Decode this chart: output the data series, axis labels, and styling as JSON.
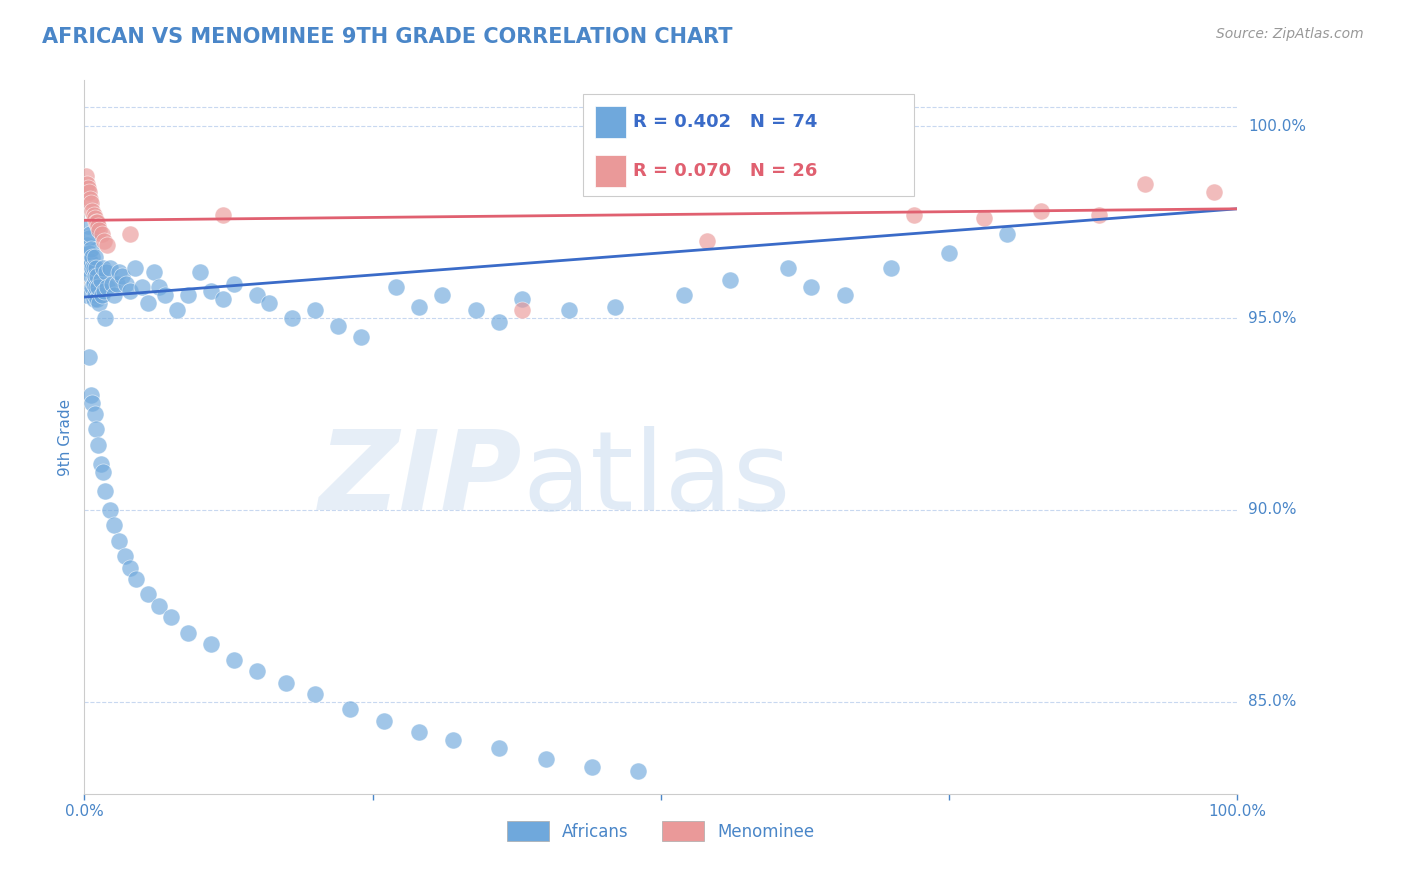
{
  "title": "AFRICAN VS MENOMINEE 9TH GRADE CORRELATION CHART",
  "source_text": "Source: ZipAtlas.com",
  "ylabel": "9th Grade",
  "african_R": 0.402,
  "african_N": 74,
  "menominee_R": 0.07,
  "menominee_N": 26,
  "african_color": "#6fa8dc",
  "menominee_color": "#ea9999",
  "african_line_color": "#3a6bc8",
  "menominee_line_color": "#e06070",
  "grid_color": "#c8d8f0",
  "title_color": "#4a86c8",
  "axis_color": "#4a86c8",
  "x_range": [
    0.0,
    1.0
  ],
  "y_range": [
    0.826,
    1.012
  ],
  "right_ticks": {
    "1.00": "100.0%",
    "0.95": "95.0%",
    "0.90": "90.0%",
    "0.85": "85.0%"
  },
  "african_scatter_x": [
    0.001,
    0.001,
    0.002,
    0.003,
    0.004,
    0.004,
    0.005,
    0.005,
    0.006,
    0.006,
    0.007,
    0.007,
    0.007,
    0.008,
    0.008,
    0.008,
    0.009,
    0.009,
    0.009,
    0.01,
    0.01,
    0.011,
    0.011,
    0.012,
    0.013,
    0.014,
    0.015,
    0.016,
    0.017,
    0.018,
    0.019,
    0.02,
    0.022,
    0.024,
    0.026,
    0.028,
    0.03,
    0.033,
    0.036,
    0.04,
    0.044,
    0.05,
    0.055,
    0.06,
    0.065,
    0.07,
    0.08,
    0.09,
    0.1,
    0.11,
    0.12,
    0.13,
    0.15,
    0.16,
    0.18,
    0.2,
    0.22,
    0.24,
    0.27,
    0.29,
    0.31,
    0.34,
    0.36,
    0.38,
    0.42,
    0.46,
    0.52,
    0.56,
    0.61,
    0.63,
    0.66,
    0.7,
    0.75,
    0.8
  ],
  "african_scatter_y": [
    0.963,
    0.956,
    0.969,
    0.974,
    0.971,
    0.967,
    0.972,
    0.965,
    0.968,
    0.961,
    0.966,
    0.963,
    0.958,
    0.963,
    0.959,
    0.955,
    0.966,
    0.961,
    0.956,
    0.963,
    0.958,
    0.961,
    0.955,
    0.958,
    0.954,
    0.96,
    0.956,
    0.963,
    0.957,
    0.95,
    0.962,
    0.958,
    0.963,
    0.959,
    0.956,
    0.959,
    0.962,
    0.961,
    0.959,
    0.957,
    0.963,
    0.958,
    0.954,
    0.962,
    0.958,
    0.956,
    0.952,
    0.956,
    0.962,
    0.957,
    0.955,
    0.959,
    0.956,
    0.954,
    0.95,
    0.952,
    0.948,
    0.945,
    0.958,
    0.953,
    0.956,
    0.952,
    0.949,
    0.955,
    0.952,
    0.953,
    0.956,
    0.96,
    0.963,
    0.958,
    0.956,
    0.963,
    0.967,
    0.972
  ],
  "african_scatter_y_low": [
    0.94,
    0.93,
    0.928,
    0.925,
    0.921,
    0.917,
    0.912,
    0.91,
    0.905,
    0.9,
    0.896,
    0.892,
    0.888,
    0.885,
    0.882,
    0.878,
    0.875,
    0.872,
    0.868,
    0.865,
    0.861,
    0.858,
    0.855,
    0.852,
    0.848,
    0.845,
    0.842,
    0.84,
    0.838,
    0.835,
    0.833,
    0.832
  ],
  "african_scatter_x_low": [
    0.004,
    0.006,
    0.007,
    0.009,
    0.01,
    0.012,
    0.014,
    0.016,
    0.018,
    0.022,
    0.026,
    0.03,
    0.035,
    0.04,
    0.045,
    0.055,
    0.065,
    0.075,
    0.09,
    0.11,
    0.13,
    0.15,
    0.175,
    0.2,
    0.23,
    0.26,
    0.29,
    0.32,
    0.36,
    0.4,
    0.44,
    0.48
  ],
  "menominee_scatter_x": [
    0.001,
    0.002,
    0.003,
    0.004,
    0.005,
    0.006,
    0.007,
    0.008,
    0.009,
    0.01,
    0.011,
    0.012,
    0.013,
    0.015,
    0.017,
    0.02,
    0.04,
    0.12,
    0.38,
    0.54,
    0.72,
    0.78,
    0.83,
    0.88,
    0.92,
    0.98
  ],
  "menominee_scatter_y": [
    0.987,
    0.985,
    0.984,
    0.983,
    0.981,
    0.98,
    0.978,
    0.977,
    0.976,
    0.975,
    0.975,
    0.974,
    0.973,
    0.972,
    0.97,
    0.969,
    0.972,
    0.977,
    0.952,
    0.97,
    0.977,
    0.976,
    0.978,
    0.977,
    0.985,
    0.983
  ],
  "african_trendline": [
    0.9555,
    0.9785
  ],
  "menominee_trendline": [
    0.9755,
    0.9785
  ]
}
